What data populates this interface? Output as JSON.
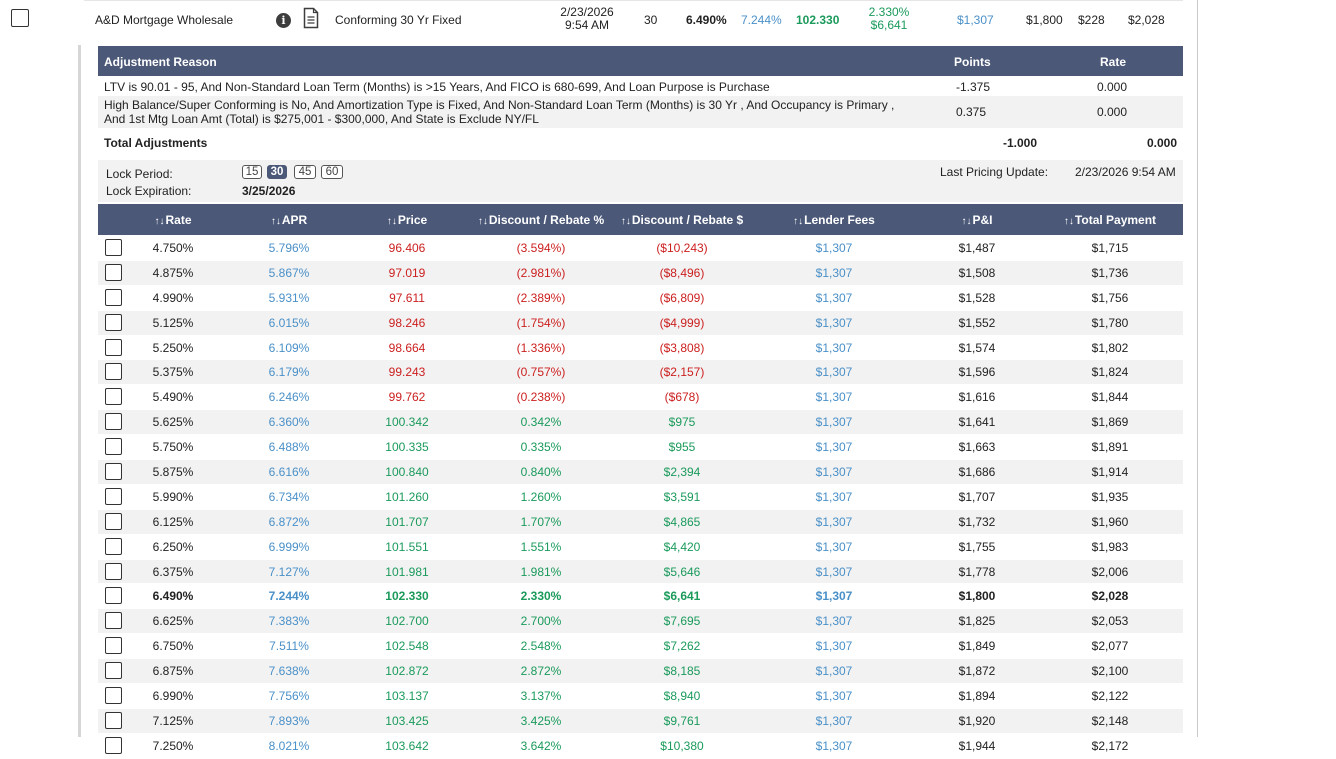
{
  "top": {
    "lender": "A&D Mortgage Wholesale",
    "program": "Conforming 30 Yr Fixed",
    "date": "2/23/2026",
    "time": "9:54 AM",
    "term": "30",
    "rate": "6.490%",
    "apr": "7.244%",
    "price": "102.330",
    "disc_pct": "2.330%",
    "disc_dol": "$6,641",
    "lender_fees": "$1,307",
    "pi": "$1,800",
    "mi": "$228",
    "total_payment": "$2,028"
  },
  "adjustments": {
    "header_reason": "Adjustment Reason",
    "header_points": "Points",
    "header_rate": "Rate",
    "rows": [
      {
        "reason_line1": "LTV is 90.01 - 95, And Non-Standard Loan Term (Months) is >15 Years, And FICO is 680-699, And Loan Purpose is Purchase",
        "reason_line2": "",
        "points": "-1.375",
        "rate": "0.000"
      },
      {
        "reason_line1": "High Balance/Super Conforming is No, And Amortization Type is Fixed, And Non-Standard Loan Term (Months) is 30 Yr , And Occupancy is Primary ,",
        "reason_line2": "And 1st Mtg Loan Amt (Total) is $275,001 - $300,000, And State is Exclude NY/FL",
        "points": "0.375",
        "rate": "0.000"
      }
    ],
    "total_label": "Total Adjustments",
    "total_points": "-1.000",
    "total_rate": "0.000"
  },
  "lock": {
    "period_label": "Lock Period:",
    "expiration_label": "Lock Expiration:",
    "expiration_value": "3/25/2026",
    "periods": [
      "15",
      "30",
      "45",
      "60"
    ],
    "active_period": "30",
    "last_update_label": "Last Pricing Update:",
    "last_update_value": "2/23/2026 9:54 AM"
  },
  "grid": {
    "headers": {
      "rate": "Rate",
      "apr": "APR",
      "price": "Price",
      "disc_pct": "Discount / Rebate %",
      "disc_dol": "Discount / Rebate $",
      "lender_fees": "Lender Fees",
      "pi": "P&I",
      "total_payment": "Total Payment"
    },
    "sort_rate": "↑↓",
    "sort_other": "↑↓",
    "selected_rate": "6.490%",
    "rows": [
      {
        "rate": "4.750%",
        "apr": "5.796%",
        "price": "96.406",
        "dpct": "(3.594%)",
        "ddol": "($10,243)",
        "fees": "$1,307",
        "pi": "$1,487",
        "tp": "$1,715"
      },
      {
        "rate": "4.875%",
        "apr": "5.867%",
        "price": "97.019",
        "dpct": "(2.981%)",
        "ddol": "($8,496)",
        "fees": "$1,307",
        "pi": "$1,508",
        "tp": "$1,736"
      },
      {
        "rate": "4.990%",
        "apr": "5.931%",
        "price": "97.611",
        "dpct": "(2.389%)",
        "ddol": "($6,809)",
        "fees": "$1,307",
        "pi": "$1,528",
        "tp": "$1,756"
      },
      {
        "rate": "5.125%",
        "apr": "6.015%",
        "price": "98.246",
        "dpct": "(1.754%)",
        "ddol": "($4,999)",
        "fees": "$1,307",
        "pi": "$1,552",
        "tp": "$1,780"
      },
      {
        "rate": "5.250%",
        "apr": "6.109%",
        "price": "98.664",
        "dpct": "(1.336%)",
        "ddol": "($3,808)",
        "fees": "$1,307",
        "pi": "$1,574",
        "tp": "$1,802"
      },
      {
        "rate": "5.375%",
        "apr": "6.179%",
        "price": "99.243",
        "dpct": "(0.757%)",
        "ddol": "($2,157)",
        "fees": "$1,307",
        "pi": "$1,596",
        "tp": "$1,824"
      },
      {
        "rate": "5.490%",
        "apr": "6.246%",
        "price": "99.762",
        "dpct": "(0.238%)",
        "ddol": "($678)",
        "fees": "$1,307",
        "pi": "$1,616",
        "tp": "$1,844"
      },
      {
        "rate": "5.625%",
        "apr": "6.360%",
        "price": "100.342",
        "dpct": "0.342%",
        "ddol": "$975",
        "fees": "$1,307",
        "pi": "$1,641",
        "tp": "$1,869"
      },
      {
        "rate": "5.750%",
        "apr": "6.488%",
        "price": "100.335",
        "dpct": "0.335%",
        "ddol": "$955",
        "fees": "$1,307",
        "pi": "$1,663",
        "tp": "$1,891"
      },
      {
        "rate": "5.875%",
        "apr": "6.616%",
        "price": "100.840",
        "dpct": "0.840%",
        "ddol": "$2,394",
        "fees": "$1,307",
        "pi": "$1,686",
        "tp": "$1,914"
      },
      {
        "rate": "5.990%",
        "apr": "6.734%",
        "price": "101.260",
        "dpct": "1.260%",
        "ddol": "$3,591",
        "fees": "$1,307",
        "pi": "$1,707",
        "tp": "$1,935"
      },
      {
        "rate": "6.125%",
        "apr": "6.872%",
        "price": "101.707",
        "dpct": "1.707%",
        "ddol": "$4,865",
        "fees": "$1,307",
        "pi": "$1,732",
        "tp": "$1,960"
      },
      {
        "rate": "6.250%",
        "apr": "6.999%",
        "price": "101.551",
        "dpct": "1.551%",
        "ddol": "$4,420",
        "fees": "$1,307",
        "pi": "$1,755",
        "tp": "$1,983"
      },
      {
        "rate": "6.375%",
        "apr": "7.127%",
        "price": "101.981",
        "dpct": "1.981%",
        "ddol": "$5,646",
        "fees": "$1,307",
        "pi": "$1,778",
        "tp": "$2,006"
      },
      {
        "rate": "6.490%",
        "apr": "7.244%",
        "price": "102.330",
        "dpct": "2.330%",
        "ddol": "$6,641",
        "fees": "$1,307",
        "pi": "$1,800",
        "tp": "$2,028"
      },
      {
        "rate": "6.625%",
        "apr": "7.383%",
        "price": "102.700",
        "dpct": "2.700%",
        "ddol": "$7,695",
        "fees": "$1,307",
        "pi": "$1,825",
        "tp": "$2,053"
      },
      {
        "rate": "6.750%",
        "apr": "7.511%",
        "price": "102.548",
        "dpct": "2.548%",
        "ddol": "$7,262",
        "fees": "$1,307",
        "pi": "$1,849",
        "tp": "$2,077"
      },
      {
        "rate": "6.875%",
        "apr": "7.638%",
        "price": "102.872",
        "dpct": "2.872%",
        "ddol": "$8,185",
        "fees": "$1,307",
        "pi": "$1,872",
        "tp": "$2,100"
      },
      {
        "rate": "6.990%",
        "apr": "7.756%",
        "price": "103.137",
        "dpct": "3.137%",
        "ddol": "$8,940",
        "fees": "$1,307",
        "pi": "$1,894",
        "tp": "$2,122"
      },
      {
        "rate": "7.125%",
        "apr": "7.893%",
        "price": "103.425",
        "dpct": "3.425%",
        "ddol": "$9,761",
        "fees": "$1,307",
        "pi": "$1,920",
        "tp": "$2,148"
      },
      {
        "rate": "7.250%",
        "apr": "8.021%",
        "price": "103.642",
        "dpct": "3.642%",
        "ddol": "$10,380",
        "fees": "$1,307",
        "pi": "$1,944",
        "tp": "$2,172"
      }
    ]
  },
  "colors": {
    "header_bg": "#4b5878",
    "negative": "#cc1f1f",
    "positive": "#1a9a5b",
    "link": "#4a90c8"
  }
}
